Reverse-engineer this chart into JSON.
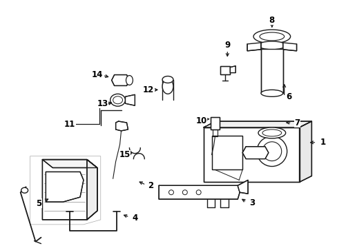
{
  "background_color": "#ffffff",
  "line_color": "#1a1a1a",
  "label_fontsize": 8.5
}
